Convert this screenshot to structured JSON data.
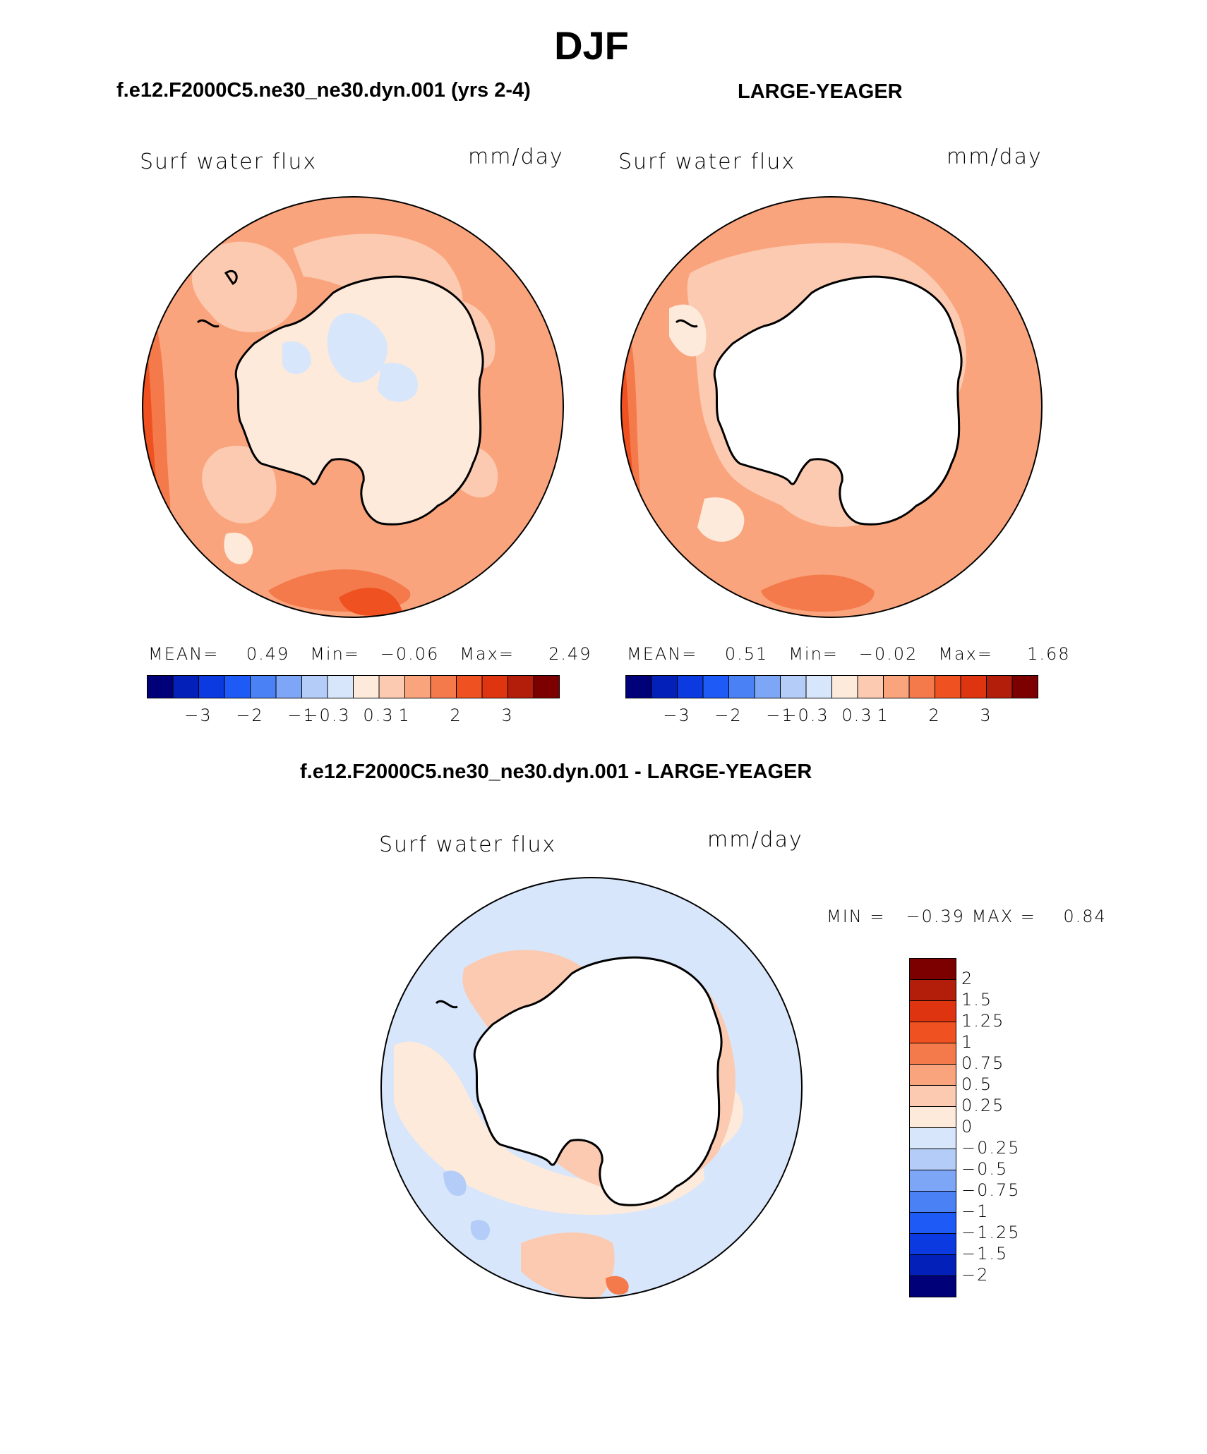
{
  "main_title": "DJF",
  "panels": [
    {
      "title": "f.e12.F2000C5.ne30_ne30.dyn.001 (yrs 2-4)",
      "variable": "Surf water flux",
      "units": "mm/day",
      "mean_label": "MEAN=",
      "mean": "0.49",
      "min_label": "Min=",
      "min": "−0.06",
      "max_label": "Max=",
      "max": "2.49",
      "colorbar_ticks": [
        "−3",
        "−2",
        "−1",
        "−0.3",
        "0.3",
        "1",
        "2",
        "3"
      ]
    },
    {
      "title": "LARGE-YEAGER",
      "variable": "Surf water flux",
      "units": "mm/day",
      "mean_label": "MEAN=",
      "mean": "0.51",
      "min_label": "Min=",
      "min": "−0.02",
      "max_label": "Max=",
      "max": "1.68",
      "colorbar_ticks": [
        "−3",
        "−2",
        "−1",
        "−0.3",
        "0.3",
        "1",
        "2",
        "3"
      ]
    }
  ],
  "diff_panel": {
    "title": "f.e12.F2000C5.ne30_ne30.dyn.001 - LARGE-YEAGER",
    "variable": "Surf water flux",
    "units": "mm/day",
    "min_label": "MIN =",
    "min": "−0.39",
    "max_label": "MAX =",
    "max": "0.84",
    "colorbar_labels": [
      "2",
      "1.5",
      "1.25",
      "1",
      "0.75",
      "0.5",
      "0.25",
      "0",
      "−0.25",
      "−0.5",
      "−0.75",
      "−1",
      "−1.25",
      "−1.5",
      "−2"
    ]
  },
  "colors": {
    "palette16": [
      "#000078",
      "#0320b8",
      "#0a3ae0",
      "#1e5af5",
      "#4a82f5",
      "#7ea6f7",
      "#b4cdf8",
      "#d7e6fb",
      "#fdeadb",
      "#fccab0",
      "#f9a47c",
      "#f47a4c",
      "#ef5220",
      "#de3410",
      "#b21e0a",
      "#7d0000"
    ],
    "coastline": "#000000"
  }
}
